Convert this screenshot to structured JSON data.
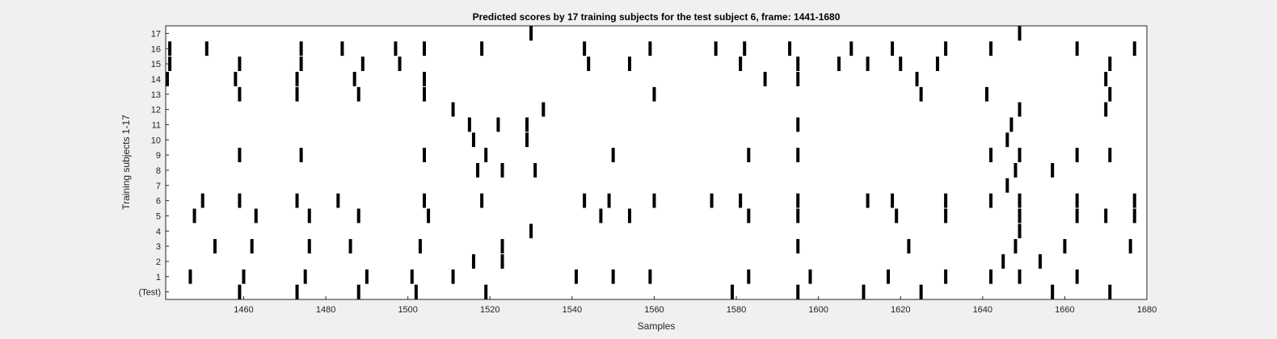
{
  "chart_data": {
    "type": "scatter",
    "title": "Predicted scores by 17 training subjects for the test subject 6, frame: 1441-1680",
    "xlabel": "Samples",
    "ylabel": "Training subjects 1-17",
    "xlim": [
      1441,
      1680
    ],
    "x_ticks": [
      1460,
      1480,
      1500,
      1520,
      1540,
      1560,
      1580,
      1600,
      1620,
      1640,
      1660,
      1680
    ],
    "rows": [
      "(Test)",
      "1",
      "2",
      "3",
      "4",
      "5",
      "6",
      "7",
      "8",
      "9",
      "10",
      "11",
      "12",
      "13",
      "14",
      "15",
      "16",
      "17"
    ],
    "grid": false,
    "marker": "vertical bar",
    "mark_color": "#000000",
    "series": [
      {
        "row": "(Test)",
        "x": [
          1459,
          1473,
          1488,
          1502,
          1519,
          1579,
          1595,
          1611,
          1625,
          1657,
          1671
        ]
      },
      {
        "row": "1",
        "x": [
          1447,
          1460,
          1475,
          1490,
          1501,
          1511,
          1541,
          1550,
          1559,
          1583,
          1598,
          1617,
          1631,
          1642,
          1649,
          1663
        ]
      },
      {
        "row": "2",
        "x": [
          1516,
          1523,
          1645,
          1654
        ]
      },
      {
        "row": "3",
        "x": [
          1453,
          1462,
          1476,
          1486,
          1503,
          1523,
          1595,
          1622,
          1648,
          1660,
          1676
        ]
      },
      {
        "row": "4",
        "x": [
          1530,
          1649
        ]
      },
      {
        "row": "5",
        "x": [
          1448,
          1463,
          1476,
          1488,
          1505,
          1547,
          1554,
          1583,
          1595,
          1619,
          1631,
          1649,
          1663,
          1670,
          1677
        ]
      },
      {
        "row": "6",
        "x": [
          1450,
          1459,
          1473,
          1483,
          1504,
          1518,
          1543,
          1549,
          1560,
          1574,
          1581,
          1595,
          1612,
          1618,
          1631,
          1642,
          1649,
          1663,
          1677
        ]
      },
      {
        "row": "7",
        "x": [
          1646
        ]
      },
      {
        "row": "8",
        "x": [
          1517,
          1523,
          1531,
          1648,
          1657
        ]
      },
      {
        "row": "9",
        "x": [
          1459,
          1474,
          1504,
          1519,
          1550,
          1583,
          1595,
          1642,
          1649,
          1663,
          1671
        ]
      },
      {
        "row": "10",
        "x": [
          1516,
          1529,
          1646
        ]
      },
      {
        "row": "11",
        "x": [
          1515,
          1522,
          1529,
          1595,
          1647
        ]
      },
      {
        "row": "12",
        "x": [
          1511,
          1533,
          1649,
          1670
        ]
      },
      {
        "row": "13",
        "x": [
          1459,
          1473,
          1488,
          1504,
          1560,
          1625,
          1641,
          1671
        ]
      },
      {
        "row": "14",
        "x": [
          1441,
          1458,
          1473,
          1487,
          1504,
          1587,
          1595,
          1624,
          1670
        ]
      },
      {
        "row": "15",
        "x": [
          1442,
          1459,
          1474,
          1489,
          1498,
          1544,
          1554,
          1581,
          1595,
          1605,
          1612,
          1620,
          1629,
          1671
        ]
      },
      {
        "row": "16",
        "x": [
          1442,
          1451,
          1474,
          1484,
          1497,
          1504,
          1518,
          1543,
          1559,
          1575,
          1582,
          1593,
          1608,
          1618,
          1631,
          1642,
          1663,
          1677
        ]
      },
      {
        "row": "17",
        "x": [
          1530,
          1649
        ]
      }
    ]
  }
}
